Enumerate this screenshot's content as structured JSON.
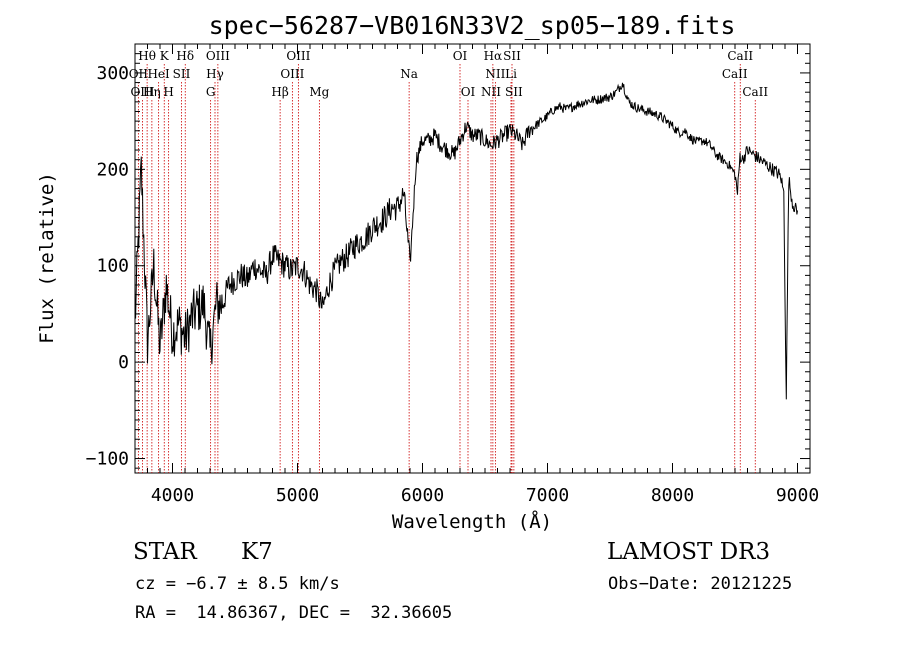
{
  "chart_data": {
    "type": "line",
    "title": "spec−56287−VB016N33V2_sp05−189.fits",
    "xlabel": "Wavelength (Å)",
    "ylabel": "Flux (relative)",
    "xlim": [
      3700,
      9100
    ],
    "ylim": [
      -115,
      330
    ],
    "x_ticks": [
      4000,
      5000,
      6000,
      7000,
      8000,
      9000
    ],
    "x_tick_labels": [
      "4000",
      "5000",
      "6000",
      "7000",
      "8000",
      "9000"
    ],
    "y_ticks": [
      -100,
      0,
      100,
      200,
      300
    ],
    "y_tick_labels": [
      "−100",
      "0",
      "100",
      "200",
      "300"
    ],
    "series": [
      {
        "name": "flux",
        "x": [
          3700,
          3750,
          3800,
          3850,
          3900,
          3950,
          4000,
          4050,
          4100,
          4150,
          4200,
          4250,
          4300,
          4350,
          4400,
          4450,
          4500,
          4550,
          4600,
          4650,
          4700,
          4750,
          4800,
          4850,
          4900,
          4950,
          5000,
          5050,
          5100,
          5150,
          5200,
          5250,
          5300,
          5350,
          5400,
          5450,
          5500,
          5550,
          5600,
          5650,
          5700,
          5750,
          5800,
          5850,
          5900,
          5950,
          6000,
          6050,
          6100,
          6150,
          6200,
          6250,
          6300,
          6350,
          6400,
          6450,
          6500,
          6550,
          6600,
          6650,
          6700,
          6750,
          6800,
          6850,
          6900,
          6950,
          7000,
          7050,
          7100,
          7150,
          7200,
          7250,
          7300,
          7350,
          7400,
          7450,
          7500,
          7550,
          7600,
          7650,
          7700,
          7750,
          7800,
          7850,
          7900,
          7950,
          8000,
          8050,
          8100,
          8150,
          8200,
          8250,
          8300,
          8350,
          8400,
          8450,
          8500,
          8520,
          8540,
          8560,
          8600,
          8650,
          8700,
          8750,
          8800,
          8850,
          8870,
          8890,
          8910,
          8930,
          8960,
          9000
        ],
        "y": [
          40,
          200,
          20,
          100,
          15,
          80,
          30,
          40,
          25,
          45,
          55,
          60,
          10,
          60,
          60,
          80,
          85,
          90,
          85,
          100,
          95,
          90,
          110,
          105,
          100,
          95,
          100,
          95,
          80,
          75,
          55,
          80,
          95,
          105,
          110,
          120,
          125,
          130,
          140,
          145,
          150,
          160,
          160,
          175,
          100,
          210,
          230,
          230,
          235,
          225,
          220,
          215,
          230,
          245,
          235,
          235,
          230,
          225,
          230,
          235,
          240,
          235,
          225,
          240,
          245,
          250,
          255,
          262,
          265,
          262,
          265,
          268,
          270,
          272,
          272,
          274,
          275,
          280,
          290,
          270,
          265,
          262,
          260,
          258,
          255,
          250,
          245,
          238,
          240,
          232,
          228,
          230,
          225,
          215,
          210,
          205,
          195,
          175,
          215,
          210,
          220,
          215,
          210,
          205,
          200,
          195,
          190,
          175,
          -35,
          190,
          165,
          155
        ]
      }
    ],
    "line_labels": [
      {
        "label": "Hθ",
        "wavelength": 3797,
        "row": 1
      },
      {
        "label": "OII",
        "wavelength": 3727,
        "row": 2
      },
      {
        "label": "OIII",
        "wavelength": 3760,
        "row": 3
      },
      {
        "label": "HeI",
        "wavelength": 3889,
        "row": 2
      },
      {
        "label": "Hη",
        "wavelength": 3835,
        "row": 3
      },
      {
        "label": "K",
        "wavelength": 3934,
        "row": 1
      },
      {
        "label": "H",
        "wavelength": 3969,
        "row": 3
      },
      {
        "label": "SII",
        "wavelength": 4072,
        "row": 2
      },
      {
        "label": "Hδ",
        "wavelength": 4102,
        "row": 1
      },
      {
        "label": "OIII",
        "wavelength": 4363,
        "row": 1
      },
      {
        "label": "Hγ",
        "wavelength": 4340,
        "row": 2
      },
      {
        "label": "G",
        "wavelength": 4305,
        "row": 3
      },
      {
        "label": "OIII",
        "wavelength": 5007,
        "row": 1
      },
      {
        "label": "OIII",
        "wavelength": 4959,
        "row": 2
      },
      {
        "label": "Hβ",
        "wavelength": 4861,
        "row": 3
      },
      {
        "label": "Mg",
        "wavelength": 5175,
        "row": 3
      },
      {
        "label": "Na",
        "wavelength": 5893,
        "row": 2
      },
      {
        "label": "OI",
        "wavelength": 6300,
        "row": 1
      },
      {
        "label": "OI",
        "wavelength": 6364,
        "row": 3
      },
      {
        "label": "Hα",
        "wavelength": 6563,
        "row": 1
      },
      {
        "label": "SII",
        "wavelength": 6716,
        "row": 1
      },
      {
        "label": "NII",
        "wavelength": 6583,
        "row": 2
      },
      {
        "label": "Li",
        "wavelength": 6708,
        "row": 2
      },
      {
        "label": "NII",
        "wavelength": 6548,
        "row": 3
      },
      {
        "label": "SII",
        "wavelength": 6731,
        "row": 3
      },
      {
        "label": "CaII",
        "wavelength": 8542,
        "row": 1
      },
      {
        "label": "CaII",
        "wavelength": 8498,
        "row": 2
      },
      {
        "label": "CaII",
        "wavelength": 8662,
        "row": 3
      }
    ]
  },
  "info": {
    "object_class": "STAR",
    "subclass": "K7",
    "survey": "LAMOST DR3",
    "redshift_text": "cz = −6.7 ± 8.5 km/s",
    "obs_date": "Obs−Date: 20121225",
    "coords": "RA =  14.86367, DEC =  32.36605"
  },
  "colors": {
    "axis": "#000000",
    "line_marker": "#cc0000",
    "spectrum": "#000000"
  }
}
